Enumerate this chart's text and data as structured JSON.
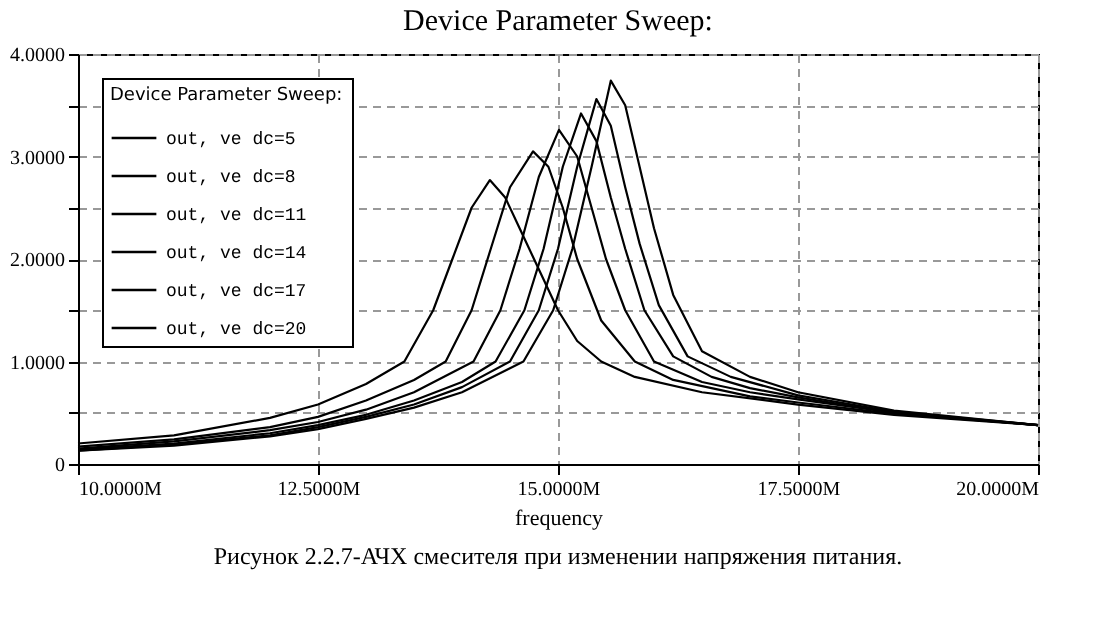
{
  "chart_data": {
    "type": "line",
    "title": "Device Parameter Sweep:",
    "xlabel": "frequency",
    "legend_title": "Device Parameter Sweep:",
    "legend": "top left",
    "grid": true,
    "marker": "none",
    "line_style": "solid",
    "xlim": [
      10,
      20
    ],
    "xticks": [
      {
        "value": 10,
        "label": "10.0000M"
      },
      {
        "value": 12.5,
        "label": "12.5000M"
      },
      {
        "value": 15,
        "label": "15.0000M"
      },
      {
        "value": 17.5,
        "label": "17.5000M"
      },
      {
        "value": 20,
        "label": "20.0000M"
      }
    ],
    "ylim": [
      0,
      4
    ],
    "yticks": [
      {
        "value": 0,
        "label": "0"
      },
      {
        "value": 0.5,
        "label": null
      },
      {
        "value": 1,
        "label": "1.0000"
      },
      {
        "value": 1.5,
        "label": null
      },
      {
        "value": 2,
        "label": "2.0000"
      },
      {
        "value": 2.5,
        "label": null
      },
      {
        "value": 3,
        "label": "3.0000"
      },
      {
        "value": 3.5,
        "label": null
      },
      {
        "value": 4,
        "label": "4.0000"
      }
    ],
    "annotations": [
      "Рисунок 2.2.7-АЧХ смесителя при изменении напряжения питания."
    ],
    "series": [
      {
        "name": "out, ve dc=5",
        "color": "#000000",
        "x": [
          10,
          11,
          12,
          12.5,
          13,
          13.4,
          13.7,
          13.9,
          14.1,
          14.29,
          14.45,
          14.6,
          14.75,
          15.0,
          15.2,
          15.45,
          15.8,
          16.5,
          17.5,
          18.5,
          20
        ],
        "values": [
          0.2,
          0.28,
          0.45,
          0.58,
          0.78,
          1.0,
          1.5,
          2.0,
          2.5,
          2.77,
          2.6,
          2.3,
          2.0,
          1.5,
          1.2,
          1.0,
          0.85,
          0.7,
          0.58,
          0.48,
          0.38
        ]
      },
      {
        "name": "out, ve dc=8",
        "color": "#000000",
        "x": [
          10,
          11,
          12,
          12.5,
          13,
          13.5,
          13.83,
          14.1,
          14.3,
          14.5,
          14.74,
          14.9,
          15.05,
          15.2,
          15.45,
          15.8,
          16.2,
          17,
          17.5,
          18.5,
          20
        ],
        "values": [
          0.17,
          0.24,
          0.36,
          0.46,
          0.62,
          0.82,
          1.0,
          1.5,
          2.1,
          2.7,
          3.05,
          2.9,
          2.5,
          2.0,
          1.4,
          1.0,
          0.82,
          0.66,
          0.6,
          0.49,
          0.38
        ]
      },
      {
        "name": "out, ve dc=11",
        "color": "#000000",
        "x": [
          10,
          11,
          12,
          12.5,
          13,
          13.5,
          14.12,
          14.4,
          14.6,
          14.8,
          15.01,
          15.2,
          15.35,
          15.5,
          15.7,
          16.0,
          16.5,
          17,
          17.5,
          18.5,
          20
        ],
        "values": [
          0.15,
          0.22,
          0.33,
          0.41,
          0.53,
          0.7,
          1.0,
          1.5,
          2.1,
          2.8,
          3.26,
          3.0,
          2.5,
          2.0,
          1.5,
          1.0,
          0.8,
          0.7,
          0.63,
          0.5,
          0.38
        ]
      },
      {
        "name": "out, ve dc=14",
        "color": "#000000",
        "x": [
          10,
          11,
          12,
          12.5,
          13,
          13.5,
          14.0,
          14.35,
          14.65,
          14.85,
          15.05,
          15.24,
          15.4,
          15.55,
          15.7,
          15.9,
          16.2,
          16.6,
          17,
          17.5,
          18.5,
          20
        ],
        "values": [
          0.14,
          0.2,
          0.3,
          0.38,
          0.48,
          0.62,
          0.8,
          1.0,
          1.5,
          2.1,
          2.9,
          3.42,
          3.15,
          2.6,
          2.1,
          1.5,
          1.05,
          0.85,
          0.74,
          0.65,
          0.5,
          0.38
        ]
      },
      {
        "name": "out, ve dc=17",
        "color": "#000000",
        "x": [
          10,
          11,
          12,
          12.5,
          13,
          13.5,
          14.0,
          14.5,
          14.8,
          15.0,
          15.2,
          15.4,
          15.55,
          15.7,
          15.85,
          16.05,
          16.35,
          16.8,
          17.5,
          18.5,
          20
        ],
        "values": [
          0.13,
          0.19,
          0.28,
          0.36,
          0.46,
          0.58,
          0.75,
          1.0,
          1.5,
          2.1,
          2.9,
          3.56,
          3.3,
          2.7,
          2.15,
          1.55,
          1.05,
          0.85,
          0.67,
          0.51,
          0.38
        ]
      },
      {
        "name": "out, ve dc=20",
        "color": "#000000",
        "x": [
          10,
          11,
          12,
          12.5,
          13,
          13.5,
          14.0,
          14.64,
          14.95,
          15.15,
          15.35,
          15.55,
          15.7,
          15.85,
          16.0,
          16.2,
          16.5,
          17,
          17.5,
          18.5,
          20
        ],
        "values": [
          0.13,
          0.18,
          0.27,
          0.34,
          0.44,
          0.55,
          0.7,
          1.0,
          1.5,
          2.1,
          2.9,
          3.74,
          3.5,
          2.9,
          2.3,
          1.65,
          1.1,
          0.85,
          0.7,
          0.52,
          0.38
        ]
      }
    ]
  }
}
